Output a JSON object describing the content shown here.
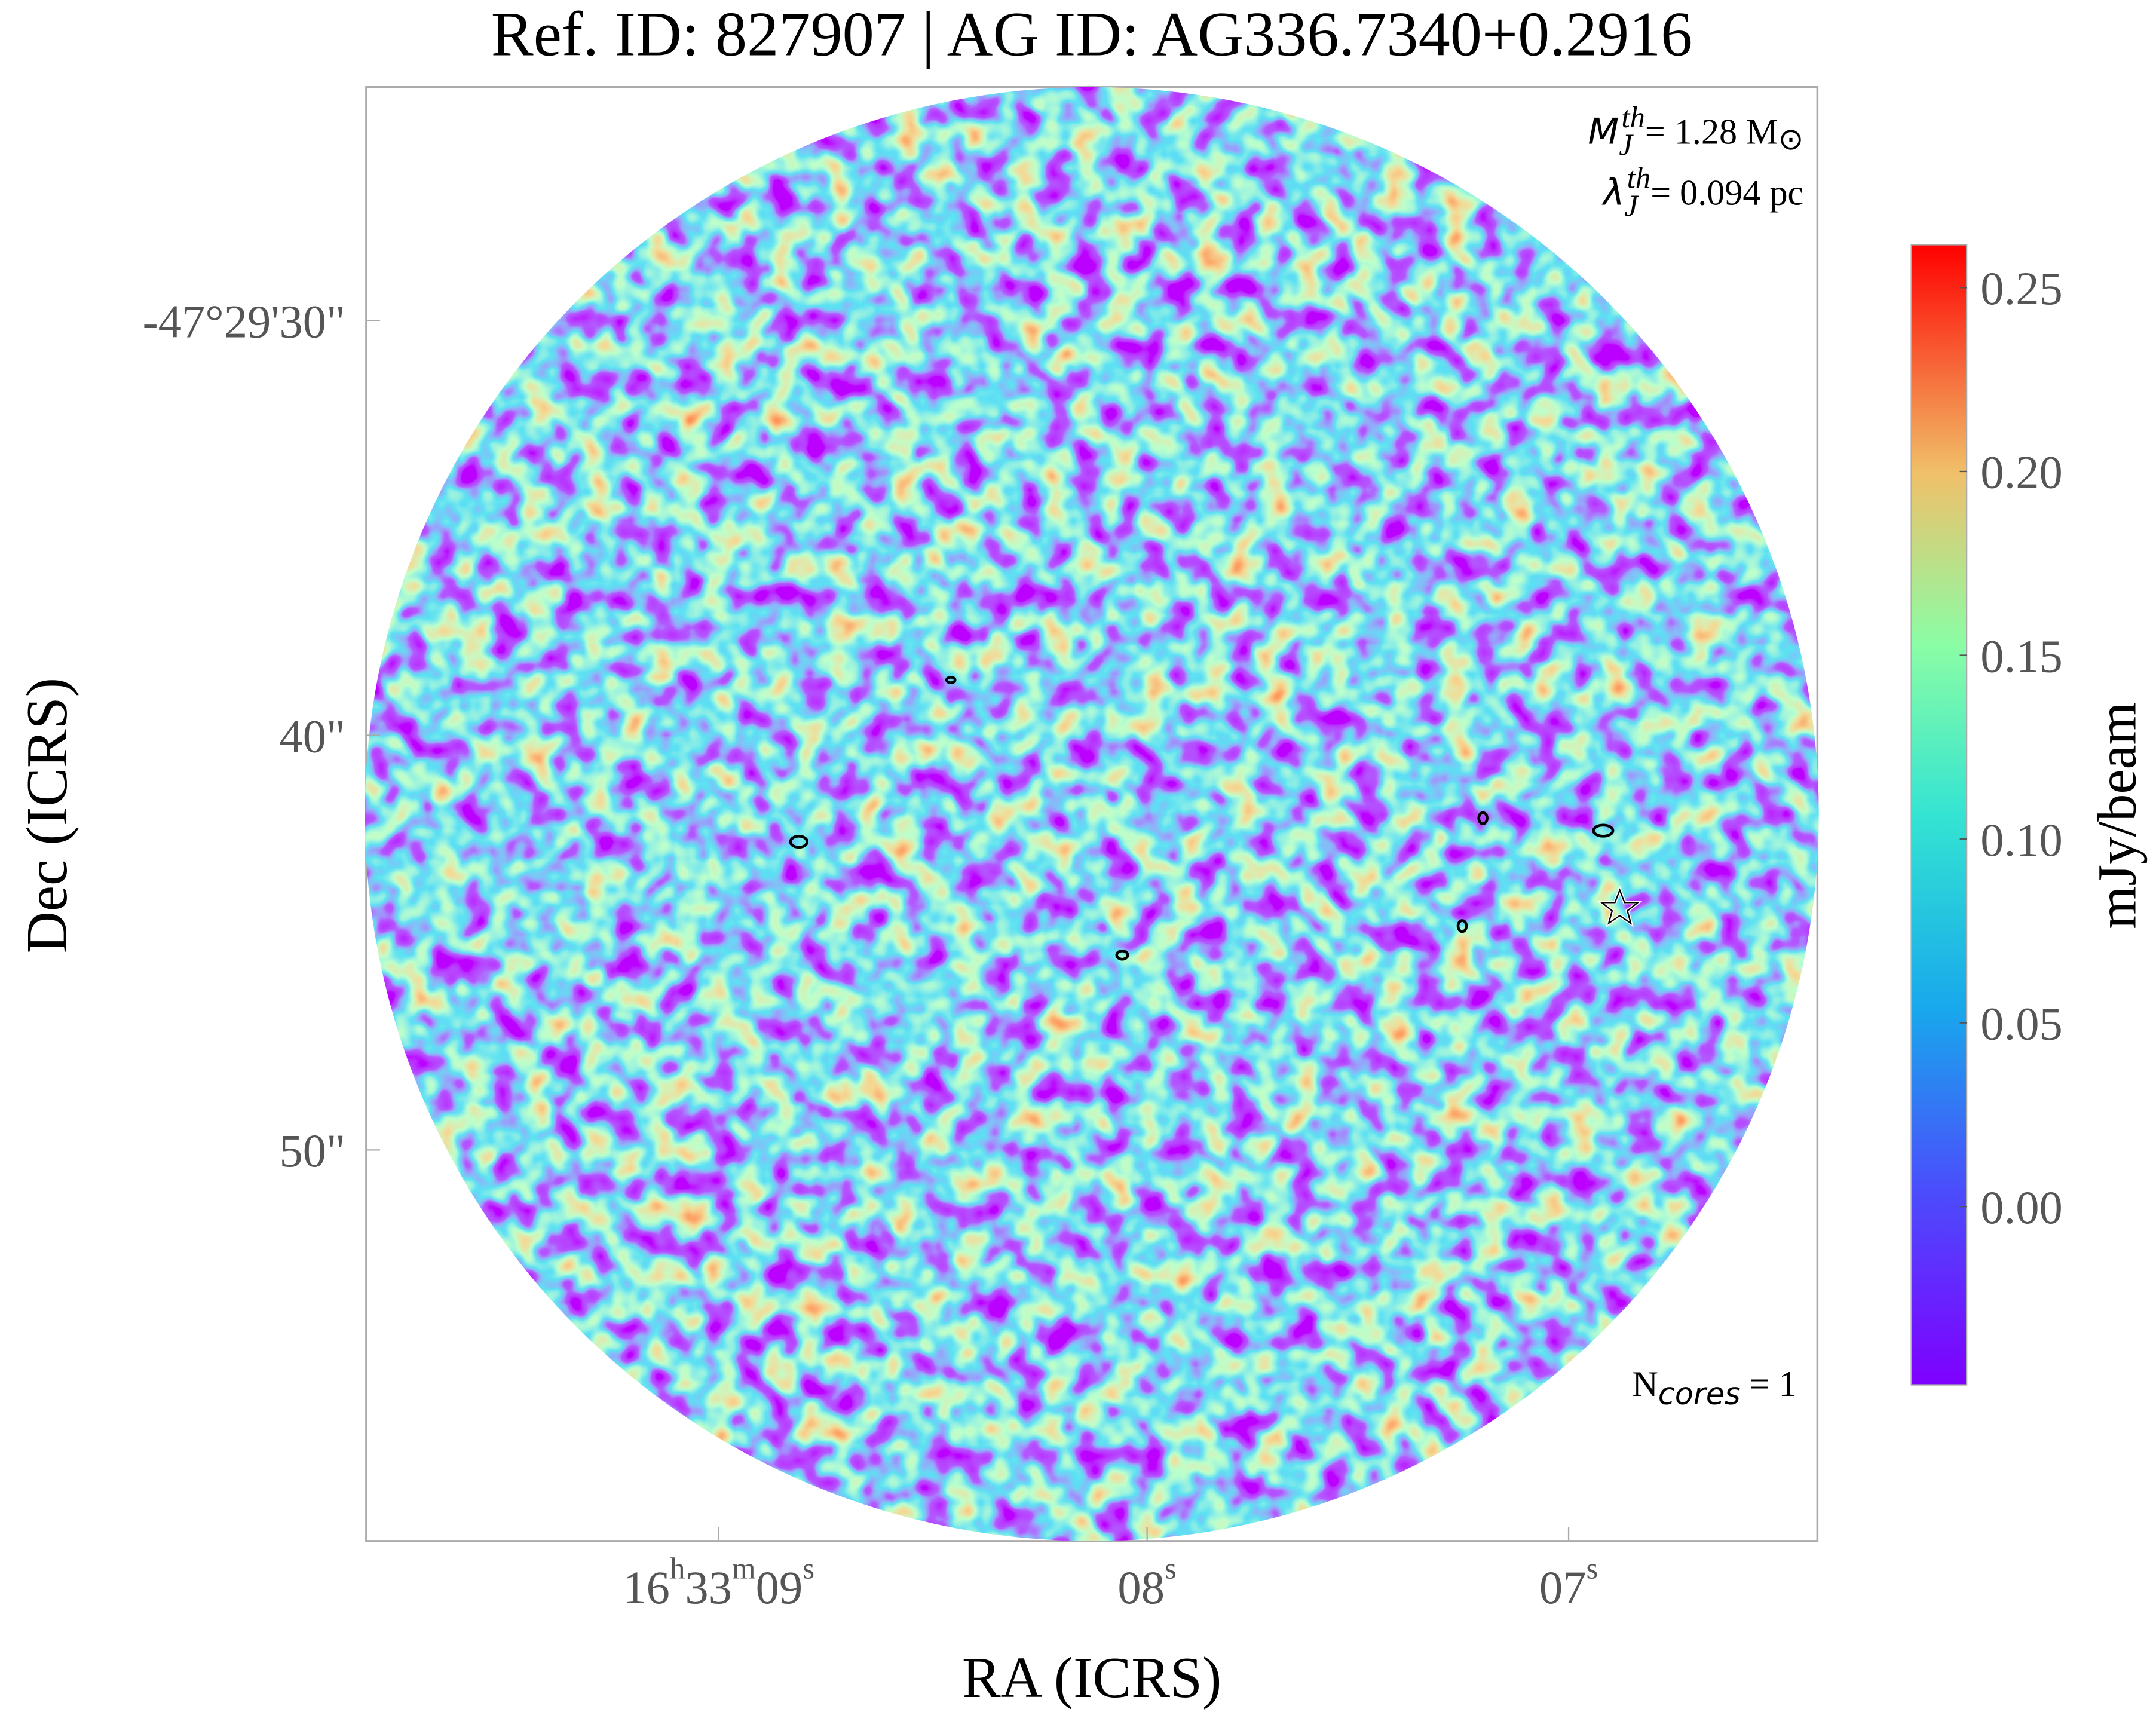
{
  "title": "Ref. ID: 827907 | AG ID: AG336.7340+0.2916",
  "x_label": "RA (ICRS)",
  "y_label": "Dec (ICRS)",
  "dec_ticks": [
    "-47°29'30\"",
    "40\"",
    "50\""
  ],
  "ra_ticks": [
    [
      "16",
      "h",
      "33",
      "m",
      "09",
      "s"
    ],
    [
      "08",
      "s"
    ],
    [
      "07",
      "s"
    ]
  ],
  "annotations": {
    "mass": [
      "M",
      "J",
      "th",
      "= 1.28 M",
      "⊙"
    ],
    "jeans_length": [
      "λ",
      "J",
      "th",
      "= 0.094 pc"
    ],
    "cores": [
      "N",
      "cores",
      " = 1"
    ]
  },
  "colorbar": {
    "label": "mJy/beam",
    "clim": [
      -0.0485,
      0.2617
    ],
    "ticks": [
      {
        "value": 0,
        "label": "0.00"
      },
      0.05,
      {
        "value": 0.1,
        "label": "0.10"
      },
      0.15,
      {
        "value": 0.2,
        "label": "0.20"
      },
      0.25
    ]
  }
}
